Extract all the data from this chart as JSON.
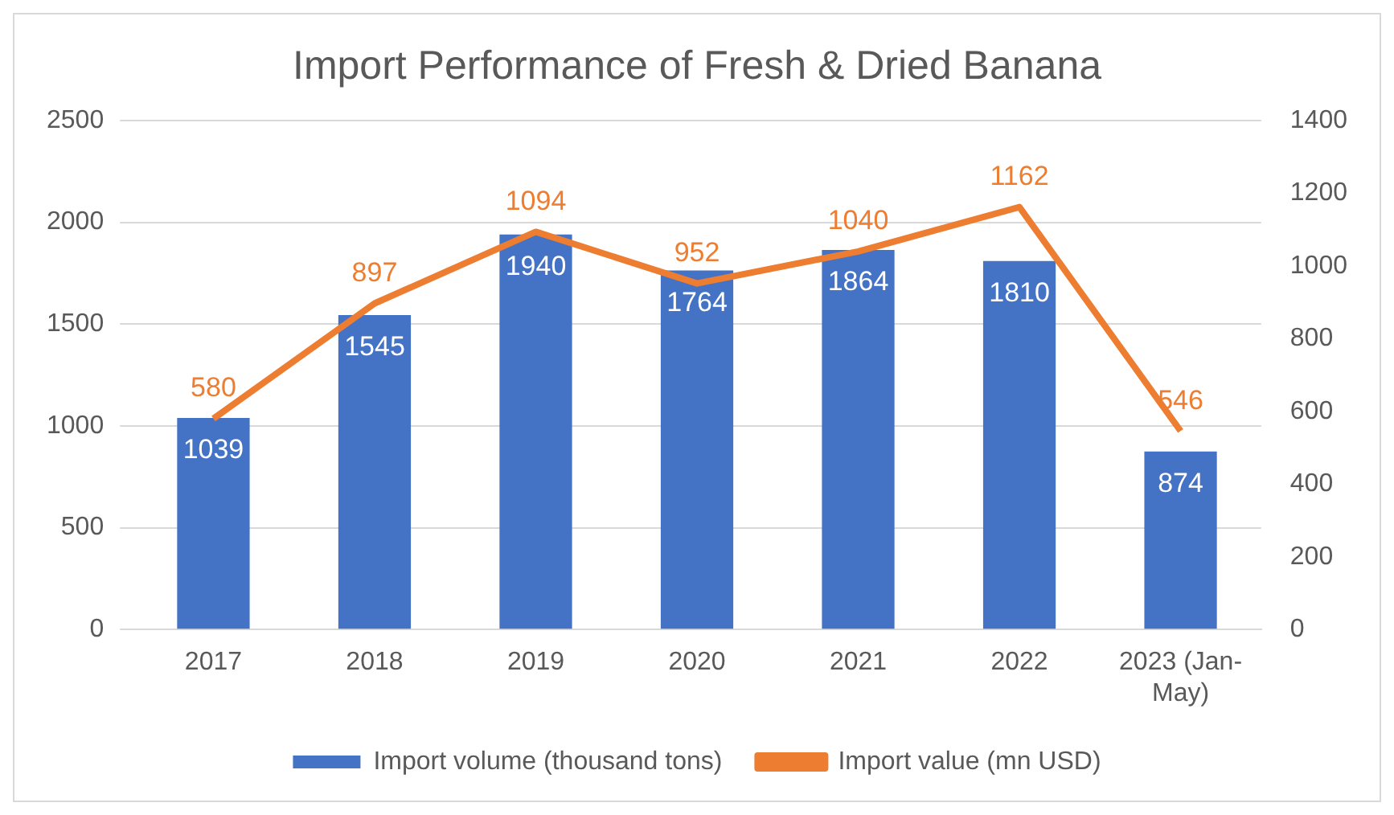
{
  "chart_data": {
    "type": "bar",
    "title": "Import Performance of Fresh & Dried Banana",
    "categories": [
      "2017",
      "2018",
      "2019",
      "2020",
      "2021",
      "2022",
      "2023 (Jan-May)"
    ],
    "series": [
      {
        "name": "Import volume (thousand tons)",
        "color": "#4472c4",
        "values": [
          1039,
          1545,
          1940,
          1764,
          1864,
          1810,
          874
        ]
      },
      {
        "name": "Import value (mn USD)",
        "type": "line",
        "axis": "y2",
        "color": "#ed7d31",
        "values": [
          580,
          897,
          1094,
          952,
          1040,
          1162,
          546
        ]
      }
    ],
    "ylim": [
      0,
      2500
    ],
    "yticks": [
      0,
      500,
      1000,
      1500,
      2000,
      2500
    ],
    "y2lim": [
      0,
      1400
    ],
    "y2ticks": [
      0,
      200,
      400,
      600,
      800,
      1000,
      1200,
      1400
    ],
    "grid": "y",
    "legend": "bottom",
    "data_labels": true,
    "marker": "none",
    "line_style": "solid"
  }
}
